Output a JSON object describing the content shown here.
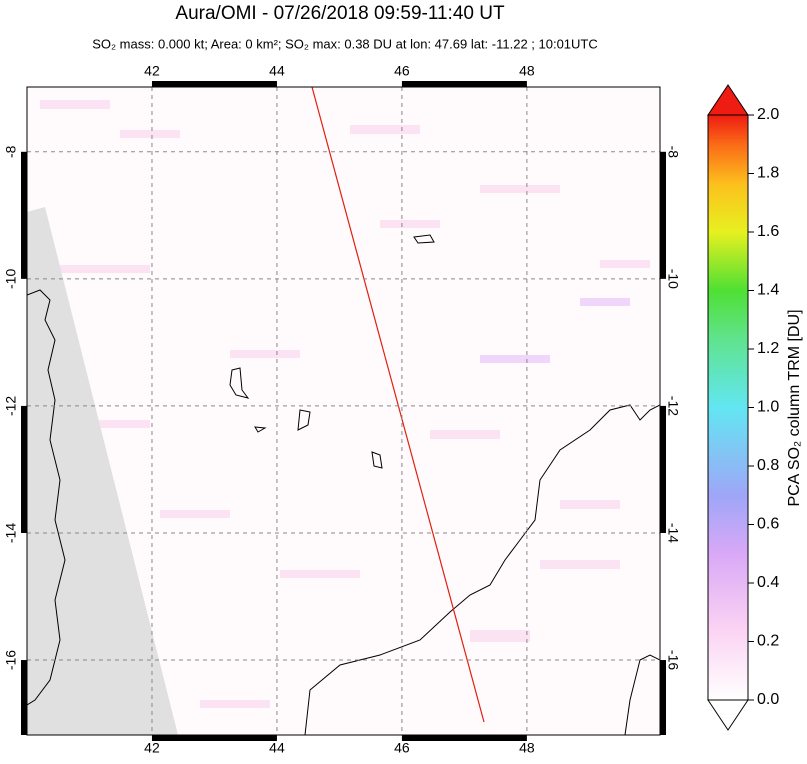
{
  "title": "Aura/OMI - 07/26/2018 09:59-11:40 UT",
  "subtitle": "SO₂ mass: 0.000 kt; Area: 0 km²; SO₂ max: 0.38 DU at lon: 47.69 lat: -11.22 ; 10:01UTC",
  "map": {
    "xlim": [
      40.0,
      50.13
    ],
    "ylim": [
      -17.18,
      -6.98
    ],
    "xticks": [
      42,
      44,
      46,
      48
    ],
    "yticks": [
      -8,
      -10,
      -12,
      -14,
      -16
    ]
  },
  "colorbar": {
    "label": "PCA SO₂ column TRM [DU]",
    "lim": [
      0,
      2
    ],
    "ticks": [
      {
        "value": 0,
        "label": "0.0"
      },
      {
        "value": 0.2,
        "label": "0.2"
      },
      {
        "value": 0.4,
        "label": "0.4"
      },
      {
        "value": 0.6,
        "label": "0.6"
      },
      {
        "value": 0.8,
        "label": "0.8"
      },
      {
        "value": 1,
        "label": "1.0"
      },
      {
        "value": 1.2,
        "label": "1.2"
      },
      {
        "value": 1.4,
        "label": "1.4"
      },
      {
        "value": 1.6,
        "label": "1.6"
      },
      {
        "value": 1.8,
        "label": "1.8"
      },
      {
        "value": 2,
        "label": "2.0"
      }
    ]
  }
}
